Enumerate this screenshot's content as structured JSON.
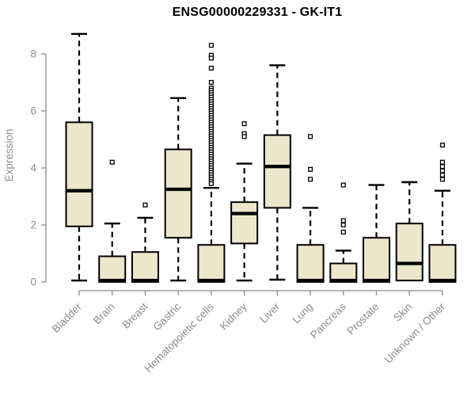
{
  "chart_data": {
    "type": "boxplot",
    "title": "ENSG00000229331 - GK-IT1",
    "ylabel": "Expression",
    "xlabel": "",
    "ylim": [
      0,
      8.75
    ],
    "yticks": [
      0,
      2,
      4,
      6,
      8
    ],
    "grid": false,
    "legend": "none",
    "categories": [
      "Bladder",
      "Brain",
      "Breast",
      "Gastric",
      "Hematopoietic cells",
      "Kidney",
      "Liver",
      "Lung",
      "Pancreas",
      "Prostate",
      "Skin",
      "Unknown / Other"
    ],
    "series": [
      {
        "name": "Bladder",
        "whisker_low": 0.05,
        "q1": 1.95,
        "median": 3.2,
        "q3": 5.6,
        "whisker_high": 8.7,
        "outliers": []
      },
      {
        "name": "Brain",
        "whisker_low": 0,
        "q1": 0,
        "median": 0.05,
        "q3": 0.9,
        "whisker_high": 2.05,
        "outliers": [
          4.2
        ]
      },
      {
        "name": "Breast",
        "whisker_low": 0,
        "q1": 0,
        "median": 0.05,
        "q3": 1.05,
        "whisker_high": 2.25,
        "outliers": [
          2.7
        ]
      },
      {
        "name": "Gastric",
        "whisker_low": 0.05,
        "q1": 1.55,
        "median": 3.25,
        "q3": 4.65,
        "whisker_high": 6.45,
        "outliers": []
      },
      {
        "name": "Hematopoietic cells",
        "whisker_low": 0,
        "q1": 0,
        "median": 0.05,
        "q3": 1.3,
        "whisker_high": 3.3,
        "outliers": [
          8.3,
          7.95,
          7.85,
          7.5,
          7.0,
          6.8,
          6.72,
          6.64,
          6.56,
          6.48,
          6.4,
          6.32,
          6.24,
          6.16,
          6.08,
          6.0,
          5.92,
          5.84,
          5.76,
          5.68,
          5.6,
          5.52,
          5.44,
          5.36,
          5.28,
          5.2,
          5.12,
          5.04,
          4.96,
          4.88,
          4.8,
          4.72,
          4.64,
          4.56,
          4.48,
          4.4,
          4.32,
          4.24,
          4.16,
          4.08,
          4.0,
          3.92,
          3.84,
          3.76,
          3.68,
          3.6,
          3.52,
          3.45
        ]
      },
      {
        "name": "Kidney",
        "whisker_low": 0.05,
        "q1": 1.35,
        "median": 2.4,
        "q3": 2.8,
        "whisker_high": 4.15,
        "outliers": [
          5.55,
          5.2,
          5.1
        ]
      },
      {
        "name": "Liver",
        "whisker_low": 0.08,
        "q1": 2.6,
        "median": 4.05,
        "q3": 5.15,
        "whisker_high": 7.6,
        "outliers": []
      },
      {
        "name": "Lung",
        "whisker_low": 0,
        "q1": 0,
        "median": 0.05,
        "q3": 1.3,
        "whisker_high": 2.6,
        "outliers": [
          5.1,
          3.95,
          3.6
        ]
      },
      {
        "name": "Pancreas",
        "whisker_low": 0,
        "q1": 0,
        "median": 0.05,
        "q3": 0.65,
        "whisker_high": 1.1,
        "outliers": [
          3.4,
          2.15,
          2.0,
          1.75
        ]
      },
      {
        "name": "Prostate",
        "whisker_low": 0,
        "q1": 0,
        "median": 0.05,
        "q3": 1.55,
        "whisker_high": 3.4,
        "outliers": []
      },
      {
        "name": "Skin",
        "whisker_low": 0.05,
        "q1": 0.05,
        "median": 0.65,
        "q3": 2.05,
        "whisker_high": 3.5,
        "outliers": []
      },
      {
        "name": "Unknown / Other",
        "whisker_low": 0,
        "q1": 0,
        "median": 0.05,
        "q3": 1.3,
        "whisker_high": 3.2,
        "outliers": [
          4.8,
          4.2,
          4.05,
          3.9,
          3.75,
          3.6
        ]
      }
    ],
    "colors": {
      "box_fill": "#ECE6CB",
      "box_stroke": "#000000",
      "median": "#000000",
      "whisker": "#000000",
      "outlier_stroke": "#000000",
      "outlier_fill": "#FFFFFF",
      "axis": "#8C8C8C",
      "title": "#000000",
      "background": "#FFFFFF"
    }
  }
}
